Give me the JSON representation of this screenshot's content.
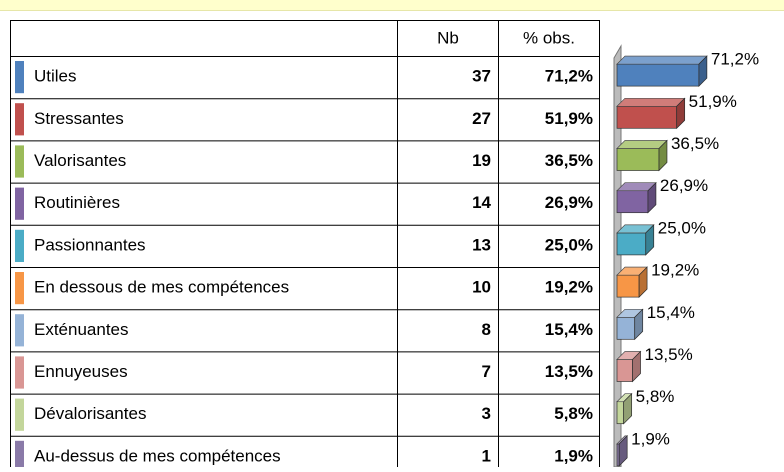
{
  "table": {
    "headers": [
      "Nb",
      "% obs."
    ]
  },
  "chart_data": {
    "type": "bar",
    "orientation": "horizontal",
    "categories": [
      "Utiles",
      "Stressantes",
      "Valorisantes",
      "Routinières",
      "Passionnantes",
      "En dessous de mes compétences",
      "Exténuantes",
      "Ennuyeuses",
      "Dévalorisantes",
      "Au-dessus de mes compétences"
    ],
    "counts": [
      37,
      27,
      19,
      14,
      13,
      10,
      8,
      7,
      3,
      1
    ],
    "values": [
      71.2,
      51.9,
      36.5,
      26.9,
      25.0,
      19.2,
      15.4,
      13.5,
      5.8,
      1.9
    ],
    "value_labels": [
      "71,2%",
      "51,9%",
      "36,5%",
      "26,9%",
      "25,0%",
      "19,2%",
      "15,4%",
      "13,5%",
      "5,8%",
      "1,9%"
    ],
    "colors": [
      "#4f81bd",
      "#c0504d",
      "#9bbb59",
      "#8064a2",
      "#4bacc6",
      "#f79646",
      "#95b3d7",
      "#d99694",
      "#c3d69b",
      "#8a7aa8"
    ]
  }
}
